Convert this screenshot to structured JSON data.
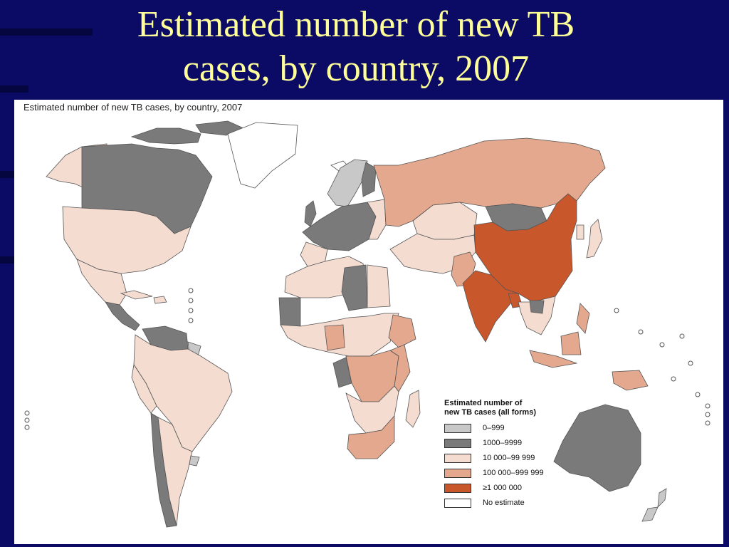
{
  "slide": {
    "title_line1": "Estimated number of new TB",
    "title_line2": "cases, by country, 2007"
  },
  "map": {
    "heading": "Estimated number of new TB cases, by country, 2007",
    "legend": {
      "title_line1": "Estimated number of",
      "title_line2": "new TB cases (all forms)",
      "items": [
        {
          "label": "0–999",
          "color": "#c8c8c8"
        },
        {
          "label": "1000–9999",
          "color": "#7a7a7a"
        },
        {
          "label": "10 000–99 999",
          "color": "#f5dcd0"
        },
        {
          "label": "100 000–999 999",
          "color": "#e3a88d"
        },
        {
          "label": "≥1 000 000",
          "color": "#c9572c"
        },
        {
          "label": "No estimate",
          "color": "#ffffff"
        }
      ]
    }
  },
  "colors": {
    "background": "#0b0b66",
    "title": "#ffff99",
    "border": "#555555"
  }
}
